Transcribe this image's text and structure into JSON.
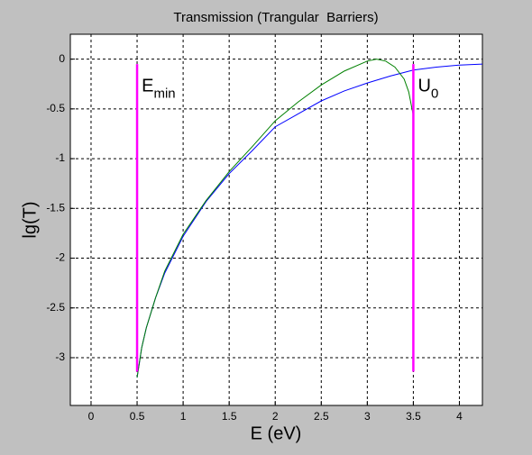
{
  "chart_data": {
    "type": "line",
    "title": "Transmission (Trangular  Barriers)",
    "x_label": "E (eV)",
    "y_label": "lg(T)",
    "xlim": [
      -0.225,
      4.25
    ],
    "xticks": [
      0,
      0.5,
      1,
      1.5,
      2,
      2.5,
      3,
      3.5,
      4
    ],
    "ylim": [
      -3.48,
      0.25
    ],
    "yticks": [
      0,
      -0.5,
      -1,
      -1.5,
      -2,
      -2.5,
      -3
    ],
    "grid": true,
    "series": [
      {
        "color": "#0000ff",
        "x": [
          0.5,
          0.55,
          0.6,
          0.7,
          0.8,
          1,
          1.25,
          1.5,
          1.75,
          2,
          2.25,
          2.5,
          2.75,
          3,
          3.25,
          3.5,
          3.75,
          4,
          4.25
        ],
        "values": [
          -3.2,
          -2.9,
          -2.7,
          -2.4,
          -2.15,
          -1.78,
          -1.43,
          -1.15,
          -0.92,
          -0.68,
          -0.55,
          -0.42,
          -0.32,
          -0.24,
          -0.17,
          -0.11,
          -0.08,
          -0.06,
          -0.05
        ]
      },
      {
        "color": "#008000",
        "x": [
          0.5,
          0.55,
          0.6,
          0.7,
          0.8,
          1,
          1.25,
          1.5,
          1.75,
          2,
          2.25,
          2.5,
          2.75,
          3,
          3.1,
          3.2,
          3.3,
          3.4,
          3.45,
          3.5
        ],
        "values": [
          -3.2,
          -2.9,
          -2.7,
          -2.4,
          -2.13,
          -1.76,
          -1.42,
          -1.13,
          -0.88,
          -0.62,
          -0.43,
          -0.26,
          -0.12,
          -0.02,
          0,
          -0.02,
          -0.08,
          -0.2,
          -0.33,
          -0.57
        ]
      },
      {
        "color": "#ff00ff",
        "x": [
          0.5,
          0.5
        ],
        "values": [
          -0.05,
          -3.14
        ]
      },
      {
        "color": "#ff00ff",
        "x": [
          3.5,
          3.5
        ],
        "values": [
          -0.05,
          -3.14
        ]
      }
    ],
    "annotations": [
      {
        "text": "E",
        "sub": "min",
        "x": 0.55,
        "y": -0.28
      },
      {
        "text": "U",
        "sub": "0",
        "x": 3.55,
        "y": -0.28
      }
    ]
  }
}
